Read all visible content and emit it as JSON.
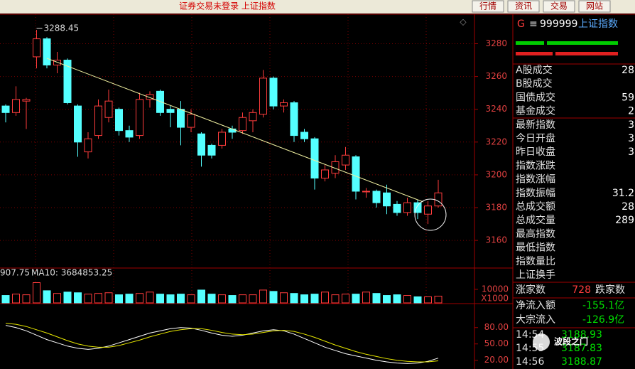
{
  "top_bar": {
    "title": "证券交易未登录  上证指数",
    "buttons": [
      "行情",
      "资讯",
      "交易",
      "网站"
    ]
  },
  "chart_data": [
    {
      "type": "candlestick",
      "open": [
        3242,
        3238,
        3245,
        3272,
        3283,
        3267,
        3270,
        3242,
        3214,
        3224,
        3235,
        3240,
        3227,
        3224,
        3246,
        3251,
        3240,
        3240,
        3229,
        3225,
        3218,
        3218,
        3228,
        3227,
        3233,
        3237,
        3259,
        3242,
        3244,
        3226,
        3222,
        3198,
        3201,
        3206,
        3211,
        3190,
        3190,
        3189,
        3182,
        3177,
        3183,
        3176,
        3181
      ],
      "high": [
        3243,
        3254,
        3247,
        3288.45,
        3284,
        3275,
        3271,
        3243,
        3226,
        3246,
        3252,
        3241,
        3230,
        3250,
        3251,
        3252,
        3242,
        3245,
        3240,
        3226,
        3219,
        3228,
        3230,
        3238,
        3240,
        3264,
        3260,
        3246,
        3245,
        3228,
        3223,
        3206,
        3212,
        3217,
        3212,
        3192,
        3191,
        3194,
        3184,
        3186,
        3185,
        3184,
        3197
      ],
      "low": [
        3232,
        3236,
        3228,
        3265,
        3265,
        3262,
        3243,
        3211,
        3210,
        3222,
        3232,
        3224,
        3220,
        3222,
        3241,
        3236,
        3229,
        3218,
        3226,
        3205,
        3210,
        3216,
        3222,
        3225,
        3226,
        3235,
        3240,
        3238,
        3220,
        3220,
        3191,
        3196,
        3198,
        3203,
        3185,
        3186,
        3180,
        3176,
        3175,
        3175,
        3173,
        3170,
        3180
      ],
      "close": [
        3238,
        3246,
        3246,
        3283,
        3267,
        3270,
        3244,
        3220,
        3222,
        3242,
        3245,
        3227,
        3223,
        3246,
        3249,
        3238,
        3238,
        3229,
        3237,
        3212,
        3212,
        3226,
        3226,
        3235,
        3238,
        3259,
        3242,
        3244,
        3224,
        3222,
        3198,
        3203,
        3208,
        3212,
        3190,
        3190,
        3183,
        3181,
        3177,
        3183,
        3177,
        3181,
        3189
      ],
      "ylim": [
        3144,
        3298
      ],
      "yticks": [
        3160,
        3180,
        3200,
        3220,
        3240,
        3260,
        3280
      ],
      "grid": true,
      "up_color": "#ff3c3c",
      "down_color": "#54ffff"
    },
    {
      "type": "bar",
      "title": "907.75",
      "subtitle": "MA10: 3684853.25",
      "unit_label": "X1000",
      "values": [
        5500,
        6500,
        6000,
        15000,
        9000,
        7000,
        8000,
        7500,
        6500,
        7000,
        7500,
        6000,
        6500,
        7000,
        8000,
        6500,
        6000,
        6500,
        6000,
        9500,
        6500,
        6000,
        5500,
        6000,
        6000,
        9500,
        8500,
        7500,
        7000,
        6000,
        6500,
        8000,
        6000,
        6500,
        6500,
        8000,
        7000,
        5500,
        6000,
        5500,
        4500,
        4500,
        5000
      ],
      "ylim": [
        0,
        20000
      ],
      "yticks": [
        10000
      ]
    },
    {
      "type": "line",
      "series": [
        {
          "color": "#ffffff",
          "values": [
            84,
            80,
            74,
            66,
            58,
            52,
            46,
            42,
            40,
            42,
            46,
            52,
            58,
            64,
            70,
            74,
            78,
            80,
            79,
            75,
            70,
            66,
            64,
            66,
            70,
            74,
            76,
            74,
            68,
            60,
            52,
            44,
            38,
            32,
            28,
            24,
            20,
            17,
            15,
            14,
            15,
            18,
            24
          ]
        },
        {
          "color": "#e8e800",
          "values": [
            88,
            86,
            82,
            76,
            70,
            63,
            56,
            50,
            46,
            44,
            44,
            47,
            52,
            57,
            63,
            68,
            73,
            76,
            78,
            78,
            75,
            71,
            68,
            67,
            68,
            71,
            74,
            75,
            73,
            68,
            62,
            55,
            48,
            42,
            36,
            31,
            27,
            23,
            20,
            18,
            17,
            17,
            19
          ]
        }
      ],
      "ylim": [
        4,
        124
      ],
      "yticks": [
        {
          "value": 20,
          "label": "20.00"
        },
        {
          "value": 50,
          "label": "50.00"
        },
        {
          "value": 80,
          "label": "80.00"
        }
      ]
    }
  ],
  "quote_panel": {
    "prefix": "G",
    "menu": "≡",
    "code": "999999",
    "name": "上证指数",
    "rows": [
      [
        "A股成交",
        "28"
      ],
      [
        "B股成交"
      ],
      [
        "国债成交",
        "59"
      ],
      [
        "基金成交",
        "2"
      ],
      [
        "最新指数",
        "3"
      ],
      [
        "今日开盘",
        "3"
      ],
      [
        "昨日收盘",
        "3"
      ],
      [
        "指数涨跌"
      ],
      [
        "指数涨幅"
      ],
      [
        "指数振幅",
        "31.2"
      ],
      [
        "总成交额",
        "28"
      ],
      [
        "总成交量",
        "289"
      ],
      [
        "最高指数"
      ],
      [
        "最低指数"
      ],
      [
        "指数量比"
      ],
      [
        "上证换手"
      ]
    ],
    "advance_label": "涨家数",
    "advance": "728",
    "decline_label": "跌家数",
    "flows": [
      [
        "净流入额",
        "-155.1亿"
      ],
      [
        "大宗流入",
        "-126.9亿"
      ]
    ],
    "ticks": [
      [
        "14:54",
        "3188.93"
      ],
      [
        "14:55",
        "3187.83"
      ],
      [
        "14:56",
        "3188.87"
      ]
    ]
  },
  "watermark": "波段之门"
}
